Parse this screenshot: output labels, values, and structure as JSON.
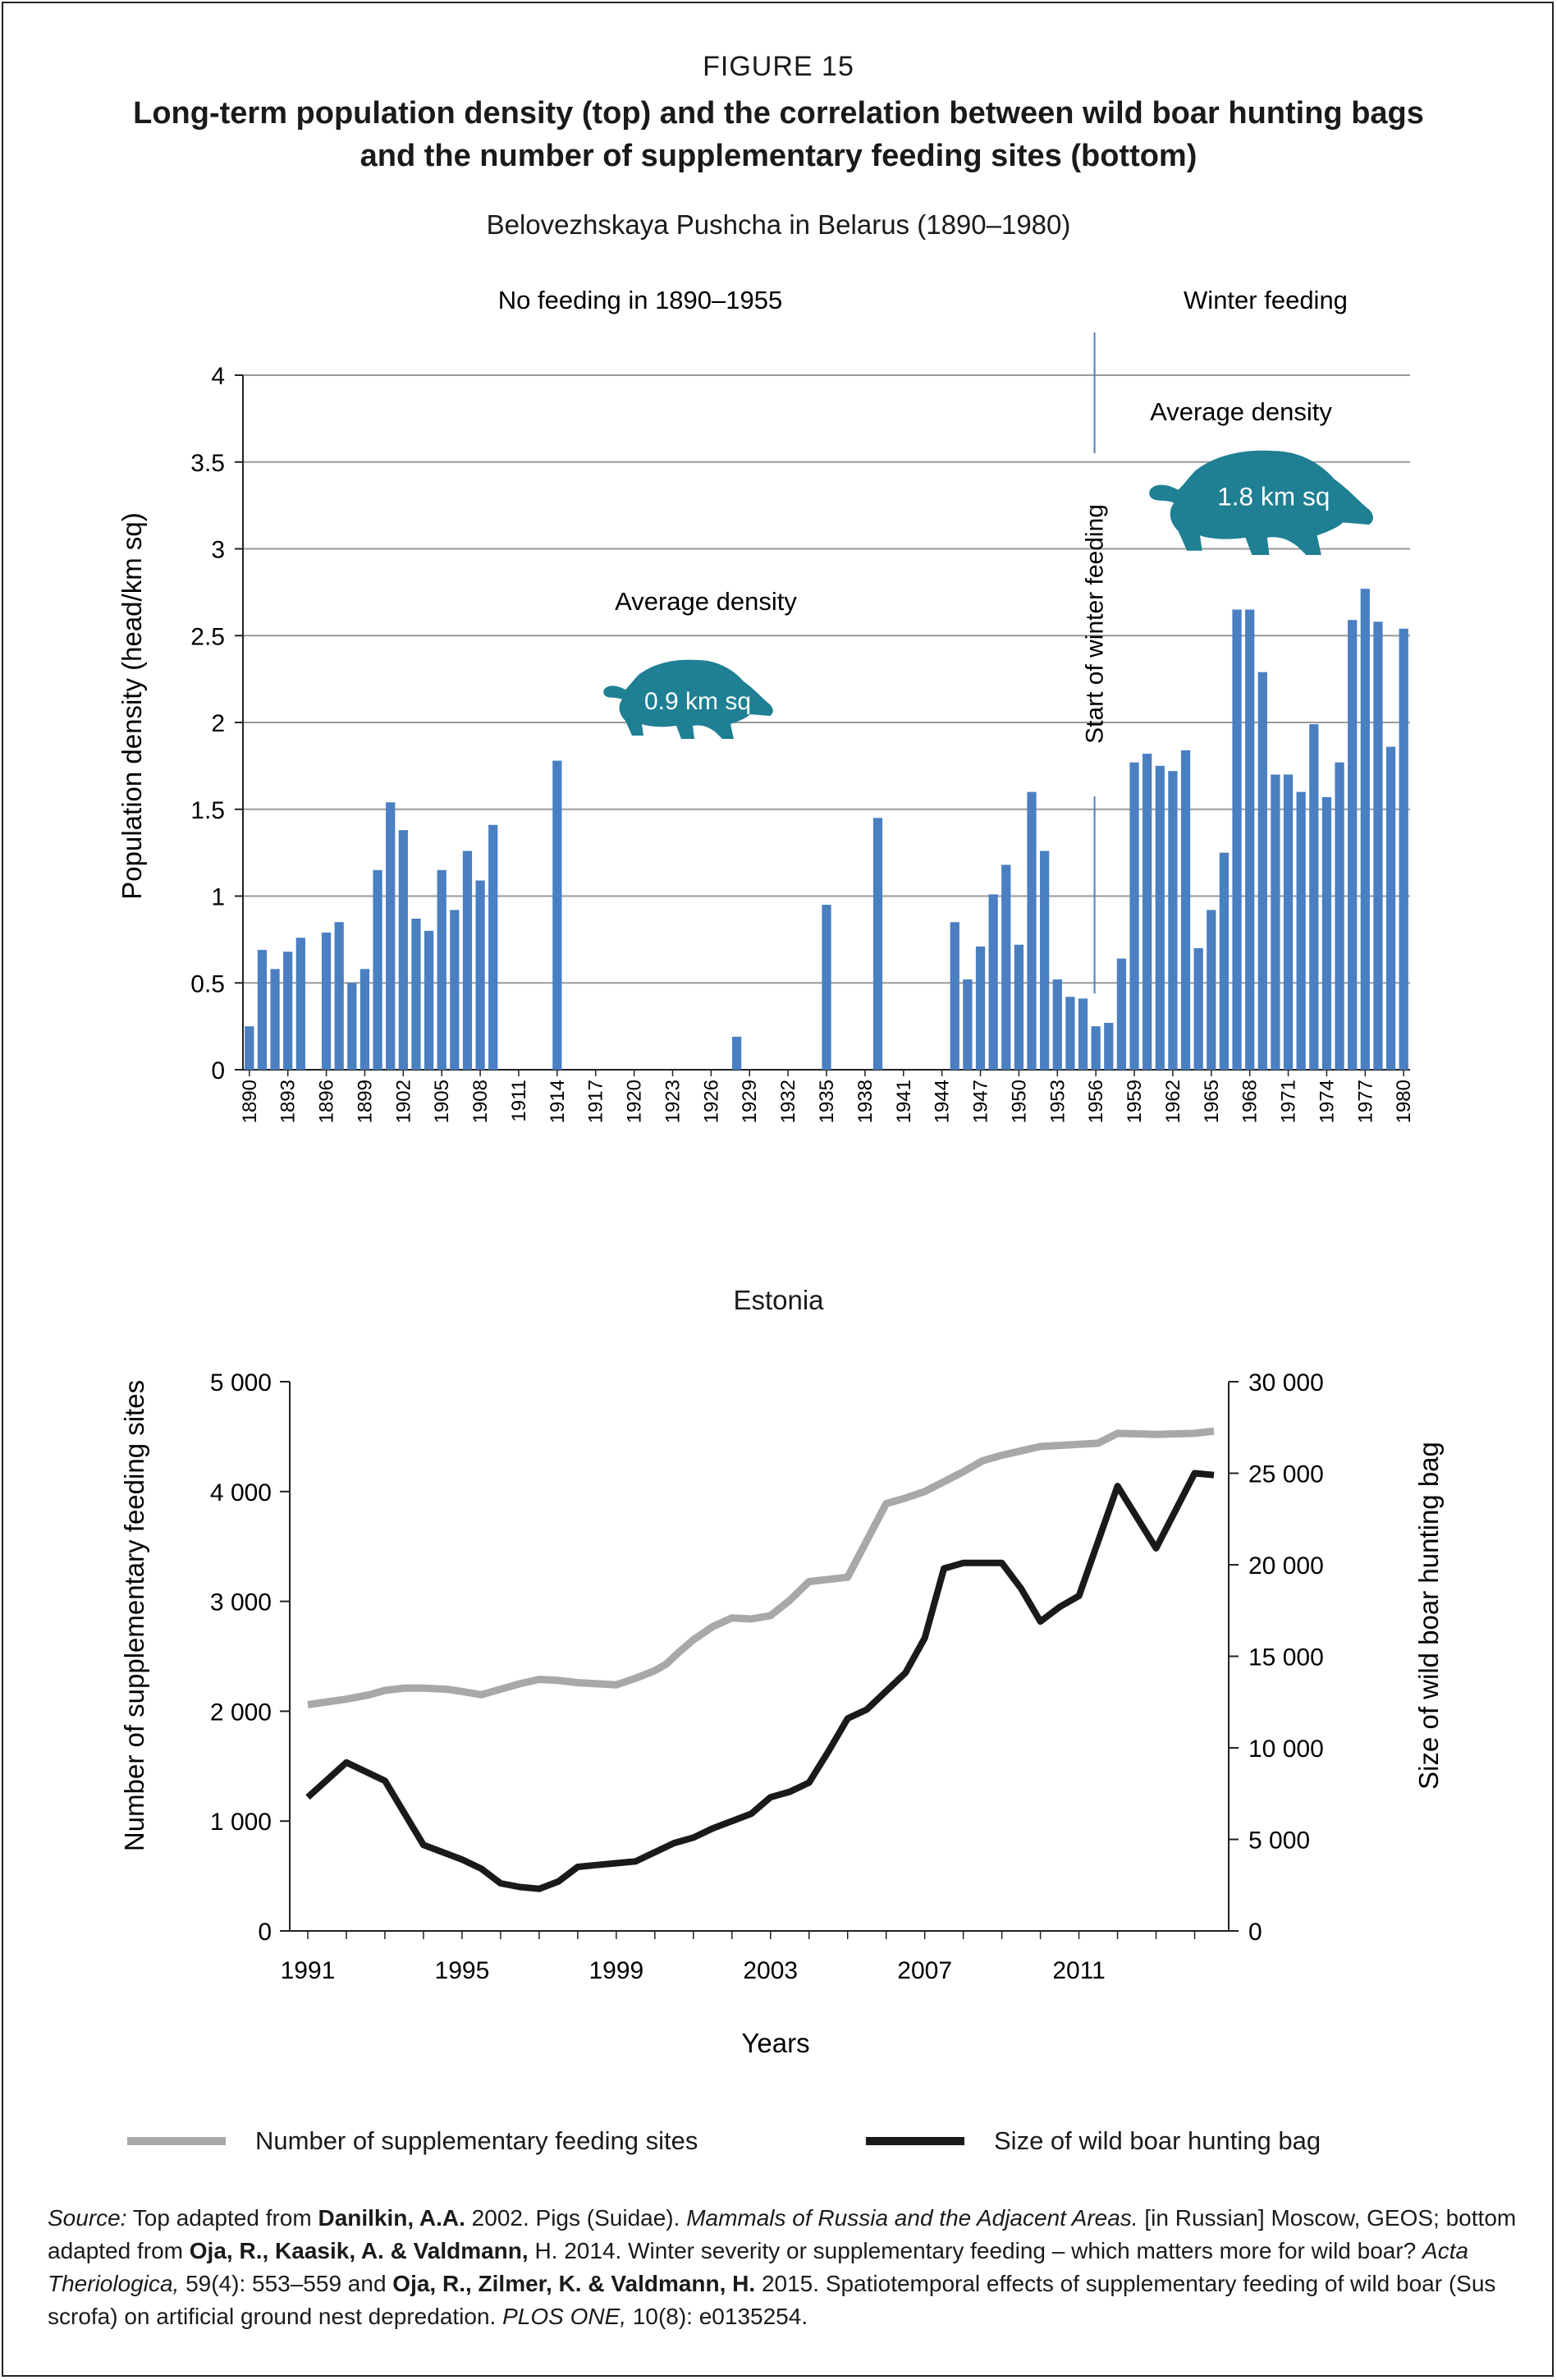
{
  "figure": {
    "label": "FIGURE 15",
    "title_line1": "Long-term population density (top) and the correlation between wild boar hunting bags",
    "title_line2": "and the number of supplementary feeding sites (bottom)"
  },
  "colors": {
    "bar": "#4a7fc1",
    "boar": "#1f7f93",
    "grey_line": "#a8a8a8",
    "black_line": "#1a1a1a",
    "grid": "#9a9a9a"
  },
  "chart_data": [
    {
      "type": "bar",
      "title": "Belovezhskaya Pushcha in Belarus (1890–1980)",
      "ylabel": "Population density (head/km sq)",
      "ylim": [
        0,
        4
      ],
      "yticks": [
        0,
        0.5,
        1,
        1.5,
        2,
        2.5,
        3,
        3.5,
        4
      ],
      "ytick_labels": [
        "0",
        "0.5",
        "1",
        "1.5",
        "2",
        "2.5",
        "3",
        "3.5",
        "4"
      ],
      "grid": true,
      "x_start": 1890,
      "x_end": 1980,
      "xtick_labels": [
        "1890",
        "1893",
        "1896",
        "1899",
        "1902",
        "1905",
        "1908",
        "1911",
        "1914",
        "1917",
        "1920",
        "1923",
        "1926",
        "1929",
        "1932",
        "1935",
        "1938",
        "1941",
        "1944",
        "1947",
        "1950",
        "1953",
        "1956",
        "1959",
        "1962",
        "1965",
        "1968",
        "1971",
        "1974",
        "1977",
        "1980"
      ],
      "bars": [
        {
          "year": 1890,
          "value": 0.25
        },
        {
          "year": 1891,
          "value": 0.69
        },
        {
          "year": 1892,
          "value": 0.58
        },
        {
          "year": 1893,
          "value": 0.68
        },
        {
          "year": 1894,
          "value": 0.76
        },
        {
          "year": 1896,
          "value": 0.79
        },
        {
          "year": 1897,
          "value": 0.85
        },
        {
          "year": 1898,
          "value": 0.5
        },
        {
          "year": 1899,
          "value": 0.58
        },
        {
          "year": 1900,
          "value": 1.15
        },
        {
          "year": 1901,
          "value": 1.54
        },
        {
          "year": 1902,
          "value": 1.38
        },
        {
          "year": 1903,
          "value": 0.87
        },
        {
          "year": 1904,
          "value": 0.8
        },
        {
          "year": 1905,
          "value": 1.15
        },
        {
          "year": 1906,
          "value": 0.92
        },
        {
          "year": 1907,
          "value": 1.26
        },
        {
          "year": 1908,
          "value": 1.09
        },
        {
          "year": 1909,
          "value": 1.41
        },
        {
          "year": 1914,
          "value": 1.78
        },
        {
          "year": 1928,
          "value": 0.19
        },
        {
          "year": 1935,
          "value": 0.95
        },
        {
          "year": 1939,
          "value": 1.45
        },
        {
          "year": 1945,
          "value": 0.85
        },
        {
          "year": 1946,
          "value": 0.52
        },
        {
          "year": 1947,
          "value": 0.71
        },
        {
          "year": 1948,
          "value": 1.01
        },
        {
          "year": 1949,
          "value": 1.18
        },
        {
          "year": 1950,
          "value": 0.72
        },
        {
          "year": 1951,
          "value": 1.6
        },
        {
          "year": 1952,
          "value": 1.26
        },
        {
          "year": 1953,
          "value": 0.52
        },
        {
          "year": 1954,
          "value": 0.42
        },
        {
          "year": 1955,
          "value": 0.41
        },
        {
          "year": 1956,
          "value": 0.25
        },
        {
          "year": 1957,
          "value": 0.27
        },
        {
          "year": 1958,
          "value": 0.64
        },
        {
          "year": 1959,
          "value": 1.77
        },
        {
          "year": 1960,
          "value": 1.82
        },
        {
          "year": 1961,
          "value": 1.75
        },
        {
          "year": 1962,
          "value": 1.72
        },
        {
          "year": 1963,
          "value": 1.84
        },
        {
          "year": 1964,
          "value": 0.7
        },
        {
          "year": 1965,
          "value": 0.92
        },
        {
          "year": 1966,
          "value": 1.25
        },
        {
          "year": 1967,
          "value": 2.65
        },
        {
          "year": 1968,
          "value": 2.65
        },
        {
          "year": 1969,
          "value": 2.29
        },
        {
          "year": 1970,
          "value": 1.7
        },
        {
          "year": 1971,
          "value": 1.7
        },
        {
          "year": 1972,
          "value": 1.6
        },
        {
          "year": 1973,
          "value": 1.99
        },
        {
          "year": 1974,
          "value": 1.57
        },
        {
          "year": 1975,
          "value": 1.77
        },
        {
          "year": 1976,
          "value": 2.59
        },
        {
          "year": 1977,
          "value": 2.77
        },
        {
          "year": 1978,
          "value": 2.58
        },
        {
          "year": 1979,
          "value": 1.86
        },
        {
          "year": 1980,
          "value": 2.54
        }
      ],
      "annotations": {
        "no_feeding": "No feeding in 1890–1955",
        "winter_feeding": "Winter feeding",
        "avg_density_left": "Average density",
        "avg_value_left": "0.9 km sq",
        "avg_density_right": "Average density",
        "avg_value_right": "1.8 km sq",
        "start_feeding": "Start of winter feeding",
        "start_feeding_year": 1956
      }
    },
    {
      "type": "line",
      "title": "Estonia",
      "xlabel": "Years",
      "ylabel_left": "Number of supplementary feeding sites",
      "ylabel_right": "Size of wild boar hunting bag",
      "xlim": [
        1991,
        2014.5
      ],
      "xtick_labels": [
        "1991",
        "1995",
        "1999",
        "2003",
        "2007",
        "2011"
      ],
      "ylim_left": [
        0,
        5000
      ],
      "yticks_left": [
        "0",
        "1 000",
        "2 000",
        "3 000",
        "4 000",
        "5 000"
      ],
      "ylim_right": [
        0,
        30000
      ],
      "yticks_right": [
        "0",
        "5 000",
        "10 000",
        "15 000",
        "20 000",
        "25 000",
        "30 000"
      ],
      "legend_position": "bottom",
      "series": [
        {
          "name": "Number of supplementary feeding sites",
          "axis": "left",
          "x": [
            1991,
            1992,
            1992.6,
            1993,
            1993.5,
            1994,
            1994.6,
            1995,
            1995.5,
            1996,
            1996.5,
            1997,
            1997.5,
            1998,
            1998.5,
            1999,
            1999.5,
            2000,
            2000.3,
            2000.6,
            2001,
            2001.5,
            2002,
            2002.5,
            2003,
            2003.5,
            2004,
            2004.5,
            2005,
            2006,
            2006.5,
            2007,
            2007.5,
            2008,
            2008.5,
            2009,
            2009.5,
            2010,
            2010.5,
            2011,
            2011.5,
            2012,
            2013,
            2014,
            2014.5
          ],
          "values": [
            2060,
            2110,
            2150,
            2190,
            2210,
            2210,
            2200,
            2180,
            2150,
            2200,
            2250,
            2290,
            2280,
            2260,
            2250,
            2240,
            2300,
            2370,
            2430,
            2530,
            2650,
            2770,
            2850,
            2840,
            2870,
            3010,
            3180,
            3200,
            3220,
            3890,
            3940,
            4000,
            4090,
            4180,
            4280,
            4330,
            4370,
            4410,
            4420,
            4430,
            4440,
            4530,
            4520,
            4530,
            4550
          ]
        },
        {
          "name": "Size of wild boar hunting bag",
          "axis": "right",
          "x": [
            1991,
            1992,
            1993,
            1994,
            1995,
            1995.5,
            1996,
            1996.5,
            1997,
            1997.5,
            1998,
            1998.5,
            1999,
            1999.5,
            2000,
            2000.5,
            2001,
            2001.5,
            2002,
            2002.5,
            2003,
            2003.5,
            2004,
            2004.5,
            2005,
            2005.5,
            2006,
            2006.5,
            2007,
            2007.5,
            2008,
            2009,
            2009.5,
            2010,
            2010.5,
            2011,
            2012,
            2013,
            2014,
            2014.5
          ],
          "values": [
            7300,
            9200,
            8200,
            4700,
            3900,
            3400,
            2600,
            2400,
            2300,
            2700,
            3500,
            3600,
            3700,
            3800,
            4300,
            4800,
            5100,
            5600,
            6000,
            6400,
            7300,
            7600,
            8100,
            9800,
            11600,
            12100,
            13100,
            14100,
            16000,
            19800,
            20100,
            20100,
            18700,
            16900,
            17700,
            18300,
            24300,
            20900,
            25000,
            24900
          ]
        }
      ]
    }
  ],
  "source": {
    "label": "Source:",
    "t1": " Top adapted from ",
    "b1": "Danilkin, A.A.",
    "t2": " 2002. Pigs (Suidae). ",
    "i1": "Mammals of Russia and the Adjacent Areas.",
    "t3": " [in Russian] Moscow, GEOS; bottom adapted from ",
    "b2": "Oja, R., Kaasik, A. & Valdmann,",
    "t4": " H. 2014. Winter severity or supplementary feeding – which matters more for wild boar? ",
    "i2": "Acta Theriologica,",
    "t5": " 59(4): 553–559 and ",
    "b3": "Oja, R., Zilmer, K. & Valdmann, H.",
    "t6": " 2015. Spatiotemporal effects of supplementary feeding of wild boar (Sus scrofa) on artificial ground nest depredation. ",
    "i3": "PLOS ONE,",
    "t7": " 10(8): e0135254."
  }
}
